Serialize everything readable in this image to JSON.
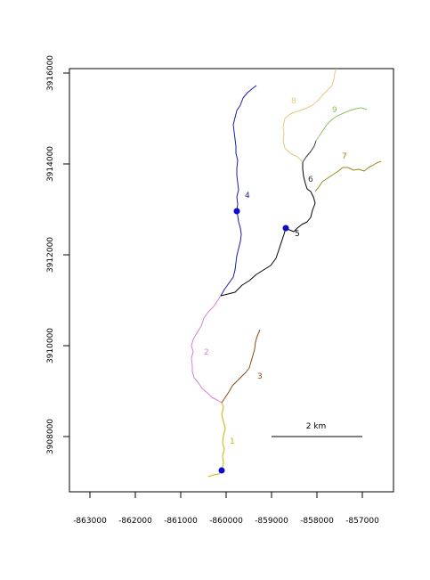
{
  "map": {
    "x_ticks": [
      "-863000",
      "-862000",
      "-861000",
      "-860000",
      "-859000",
      "-858000",
      "-857000"
    ],
    "y_ticks": [
      "3908000",
      "3910000",
      "3912000",
      "3914000",
      "3916000"
    ],
    "scale_bar_label": "2 km",
    "segment_labels": [
      "1",
      "2",
      "3",
      "4",
      "5",
      "6",
      "7",
      "8",
      "9"
    ],
    "colors": {
      "seg1": "#c8b400",
      "seg2": "#d77fcf",
      "seg3": "#8b4a1a",
      "seg4": "#1a1aa0",
      "seg5": "#000000",
      "seg6": "#333333",
      "seg7": "#9a8a1a",
      "seg8": "#e0cc80",
      "seg9": "#8fc060",
      "point": "#0a0ad0"
    }
  }
}
